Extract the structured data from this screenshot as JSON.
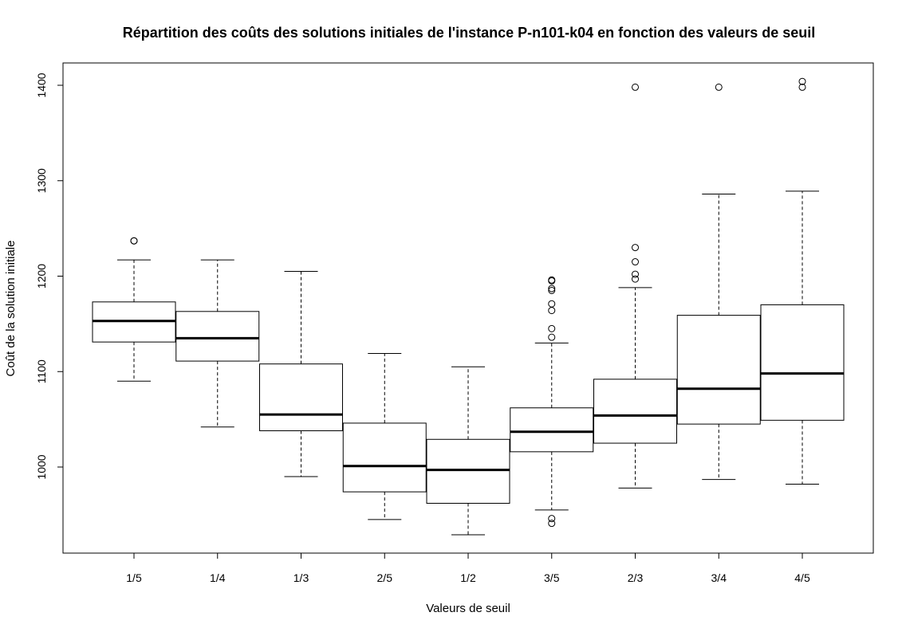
{
  "chart_data": {
    "type": "boxplot",
    "title": "Répartition des coûts des solutions initiales de l'instance P-n101-k04 en fonction des valeurs de seuil",
    "xlabel": "Valeurs de seuil",
    "ylabel": "Coût de la solution initiale",
    "categories": [
      "1/5",
      "1/4",
      "1/3",
      "2/5",
      "1/2",
      "3/5",
      "2/3",
      "3/4",
      "4/5"
    ],
    "ylim": [
      920,
      1410
    ],
    "yticks": [
      1000,
      1100,
      1200,
      1300,
      1400
    ],
    "grid": false,
    "boxes": [
      {
        "category": "1/5",
        "min": 1090,
        "q1": 1131,
        "median": 1153,
        "q3": 1173,
        "max": 1217,
        "outliers": [
          1237,
          1237
        ]
      },
      {
        "category": "1/4",
        "min": 1042,
        "q1": 1111,
        "median": 1135,
        "q3": 1163,
        "max": 1217,
        "outliers": []
      },
      {
        "category": "1/3",
        "min": 990,
        "q1": 1038,
        "median": 1055,
        "q3": 1108,
        "max": 1205,
        "outliers": []
      },
      {
        "category": "2/5",
        "min": 945,
        "q1": 974,
        "median": 1001,
        "q3": 1046,
        "max": 1119,
        "outliers": []
      },
      {
        "category": "1/2",
        "min": 929,
        "q1": 962,
        "median": 997,
        "q3": 1029,
        "max": 1105,
        "outliers": []
      },
      {
        "category": "3/5",
        "min": 955,
        "q1": 1016,
        "median": 1037,
        "q3": 1062,
        "max": 1130,
        "outliers": [
          1196,
          1195,
          1187,
          1185,
          1171,
          1164,
          1145,
          1136,
          946,
          941
        ]
      },
      {
        "category": "2/3",
        "min": 978,
        "q1": 1025,
        "median": 1054,
        "q3": 1092,
        "max": 1188,
        "outliers": [
          1398,
          1230,
          1215,
          1202,
          1197
        ]
      },
      {
        "category": "3/4",
        "min": 987,
        "q1": 1045,
        "median": 1082,
        "q3": 1159,
        "max": 1286,
        "outliers": [
          1398
        ]
      },
      {
        "category": "4/5",
        "min": 982,
        "q1": 1049,
        "median": 1098,
        "q3": 1170,
        "max": 1289,
        "outliers": [
          1404,
          1398
        ]
      }
    ]
  }
}
